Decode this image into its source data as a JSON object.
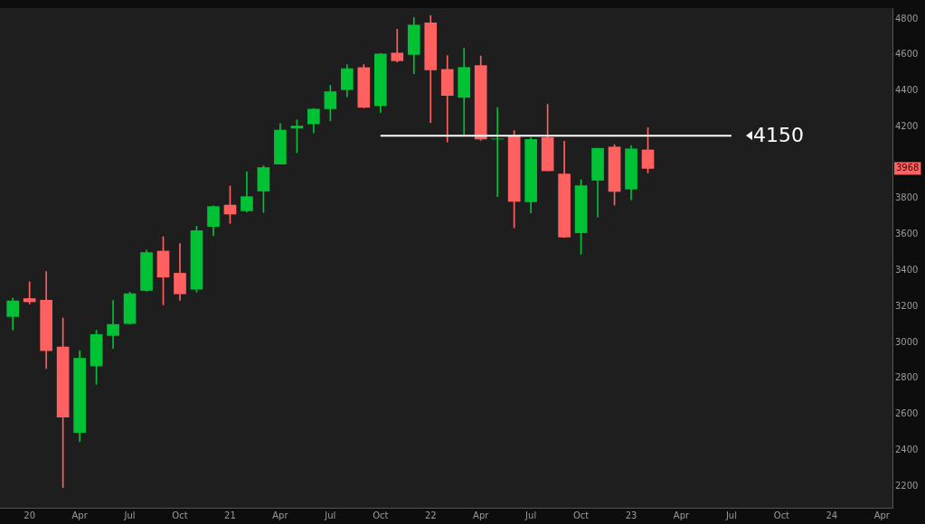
{
  "chart_data": {
    "type": "candlestick",
    "x": [
      "2019-12",
      "2020-01",
      "2020-02",
      "2020-03",
      "2020-04",
      "2020-05",
      "2020-06",
      "2020-07",
      "2020-08",
      "2020-09",
      "2020-10",
      "2020-11",
      "2020-12",
      "2021-01",
      "2021-02",
      "2021-03",
      "2021-04",
      "2021-05",
      "2021-06",
      "2021-07",
      "2021-08",
      "2021-09",
      "2021-10",
      "2021-11",
      "2021-12",
      "2022-01",
      "2022-02",
      "2022-03",
      "2022-04",
      "2022-05",
      "2022-06",
      "2022-07",
      "2022-08",
      "2022-09",
      "2022-10",
      "2022-11",
      "2022-12",
      "2023-01",
      "2023-02"
    ],
    "ohlc": [
      [
        3144,
        3247,
        3070,
        3231
      ],
      [
        3244,
        3337,
        3214,
        3226
      ],
      [
        3235,
        3394,
        2855,
        2954
      ],
      [
        2974,
        3136,
        2192,
        2585
      ],
      [
        2499,
        2954,
        2447,
        2912
      ],
      [
        2869,
        3068,
        2767,
        3044
      ],
      [
        3038,
        3233,
        2966,
        3100
      ],
      [
        3105,
        3280,
        3101,
        3271
      ],
      [
        3289,
        3514,
        3284,
        3500
      ],
      [
        3508,
        3588,
        3209,
        3363
      ],
      [
        3385,
        3550,
        3234,
        3270
      ],
      [
        3296,
        3646,
        3280,
        3622
      ],
      [
        3645,
        3760,
        3594,
        3756
      ],
      [
        3764,
        3870,
        3662,
        3714
      ],
      [
        3732,
        3950,
        3725,
        3811
      ],
      [
        3842,
        3983,
        3723,
        3973
      ],
      [
        3992,
        4218,
        3992,
        4181
      ],
      [
        4192,
        4238,
        4056,
        4204
      ],
      [
        4216,
        4302,
        4165,
        4298
      ],
      [
        4300,
        4430,
        4233,
        4395
      ],
      [
        4406,
        4546,
        4367,
        4523
      ],
      [
        4529,
        4546,
        4305,
        4308
      ],
      [
        4317,
        4608,
        4279,
        4605
      ],
      [
        4610,
        4743,
        4560,
        4567
      ],
      [
        4602,
        4808,
        4495,
        4766
      ],
      [
        4778,
        4819,
        4223,
        4516
      ],
      [
        4519,
        4596,
        4115,
        4374
      ],
      [
        4363,
        4637,
        4157,
        4530
      ],
      [
        4540,
        4593,
        4124,
        4132
      ],
      [
        4131,
        4307,
        3811,
        4132
      ],
      [
        4149,
        4178,
        3637,
        3785
      ],
      [
        3782,
        4140,
        3721,
        4130
      ],
      [
        4140,
        4325,
        3955,
        3955
      ],
      [
        3937,
        4119,
        3584,
        3586
      ],
      [
        3610,
        3906,
        3491,
        3872
      ],
      [
        3902,
        4081,
        3698,
        4080
      ],
      [
        4087,
        4101,
        3764,
        3840
      ],
      [
        3853,
        4095,
        3794,
        4077
      ],
      [
        4071,
        4195,
        3943,
        3968
      ]
    ],
    "colors": [
      "#00c234",
      "#ff6060",
      "#ff6060",
      "#ff6060",
      "#00c234",
      "#00c234",
      "#00c234",
      "#00c234",
      "#00c234",
      "#ff6060",
      "#ff6060",
      "#00c234",
      "#00c234",
      "#ff6060",
      "#00c234",
      "#00c234",
      "#00c234",
      "#00c234",
      "#00c234",
      "#00c234",
      "#00c234",
      "#ff6060",
      "#00c234",
      "#ff6060",
      "#00c234",
      "#ff6060",
      "#ff6060",
      "#00c234",
      "#ff6060",
      "#00c234",
      "#ff6060",
      "#00c234",
      "#ff6060",
      "#ff6060",
      "#00c234",
      "#00c234",
      "#ff6060",
      "#00c234",
      "#ff6060"
    ],
    "xlim": [
      "2019-11-08",
      "2024-04-20"
    ],
    "xticks": [
      {
        "value": "2020-01",
        "label": "20"
      },
      {
        "value": "2020-04",
        "label": "Apr"
      },
      {
        "value": "2020-07",
        "label": "Jul"
      },
      {
        "value": "2020-10",
        "label": "Oct"
      },
      {
        "value": "2021-01",
        "label": "21"
      },
      {
        "value": "2021-04",
        "label": "Apr"
      },
      {
        "value": "2021-07",
        "label": "Jul"
      },
      {
        "value": "2021-10",
        "label": "Oct"
      },
      {
        "value": "2022-01",
        "label": "22"
      },
      {
        "value": "2022-04",
        "label": "Apr"
      },
      {
        "value": "2022-07",
        "label": "Jul"
      },
      {
        "value": "2022-10",
        "label": "Oct"
      },
      {
        "value": "2023-01",
        "label": "23"
      },
      {
        "value": "2023-04",
        "label": "Apr"
      },
      {
        "value": "2023-07",
        "label": "Jul"
      },
      {
        "value": "2023-10",
        "label": "Oct"
      },
      {
        "value": "2024-01",
        "label": "24"
      },
      {
        "value": "2024-04",
        "label": "Apr"
      }
    ],
    "ylim": [
      2080,
      4860
    ],
    "yticks": [
      2200,
      2400,
      2600,
      2800,
      3000,
      3200,
      3400,
      3600,
      3800,
      4200,
      4400,
      4600,
      4800
    ],
    "ref_lines": [
      {
        "axis": "y",
        "value": 4150,
        "label": "4150",
        "color": "#ffffff"
      }
    ],
    "annotations": [
      "3968"
    ],
    "grid": false,
    "legend": false
  }
}
